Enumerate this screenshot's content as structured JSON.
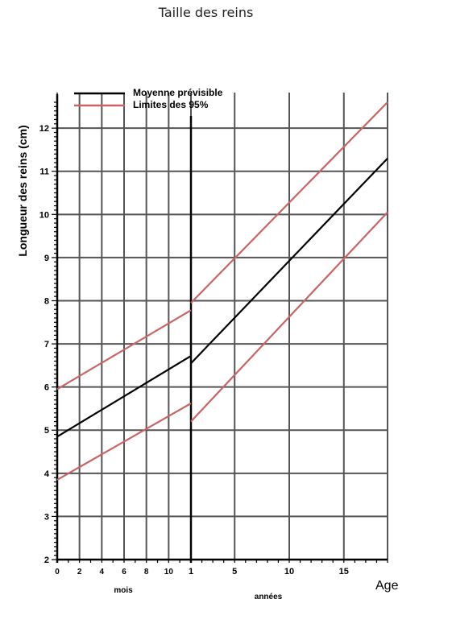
{
  "page_title": "Taille des reins",
  "chart_data": {
    "type": "line",
    "ylabel": "Longueur des reins (cm)",
    "ylim": [
      2,
      12.6
    ],
    "y_ticks": [
      "2",
      "3",
      "4",
      "5",
      "6",
      "7",
      "8",
      "9",
      "10",
      "11",
      "12"
    ],
    "x_corner_label": "Age",
    "legend": {
      "placement": "top-left",
      "entries": [
        {
          "label": "Moyenne prévisible",
          "color": "#000000"
        },
        {
          "label": "Limites des 95%",
          "color": "#c86464"
        }
      ]
    },
    "segments": [
      {
        "name": "mois",
        "unit_label": "mois",
        "xlim": [
          0,
          12
        ],
        "x_ticks": [
          "0",
          "2",
          "4",
          "6",
          "8",
          "10"
        ],
        "grid_x": [
          0,
          2,
          4,
          6,
          8,
          10,
          12
        ],
        "series": [
          {
            "name": "Moyenne prévisible",
            "x": [
              0,
              12
            ],
            "y": [
              4.85,
              6.72
            ],
            "color": "#000000"
          },
          {
            "name": "Limites des 95%",
            "x": [
              0,
              12
            ],
            "y": [
              5.95,
              7.78
            ],
            "color": "#c86464"
          },
          {
            "name": "Limites des 95%",
            "x": [
              0,
              12
            ],
            "y": [
              3.85,
              5.62
            ],
            "color": "#c86464"
          }
        ]
      },
      {
        "name": "années",
        "unit_label": "années",
        "xlim": [
          1,
          19
        ],
        "x_ticks": [
          "1",
          "5",
          "10",
          "15"
        ],
        "grid_x": [
          1,
          5,
          10,
          15,
          19
        ],
        "series": [
          {
            "name": "Moyenne prévisible",
            "x": [
              1,
              19
            ],
            "y": [
              6.55,
              11.3
            ],
            "color": "#000000"
          },
          {
            "name": "Limites des 95%",
            "x": [
              1,
              19
            ],
            "y": [
              7.95,
              12.6
            ],
            "color": "#c86464"
          },
          {
            "name": "Limites des 95%",
            "x": [
              1,
              19
            ],
            "y": [
              5.2,
              10.05
            ],
            "color": "#c86464"
          }
        ]
      }
    ]
  }
}
